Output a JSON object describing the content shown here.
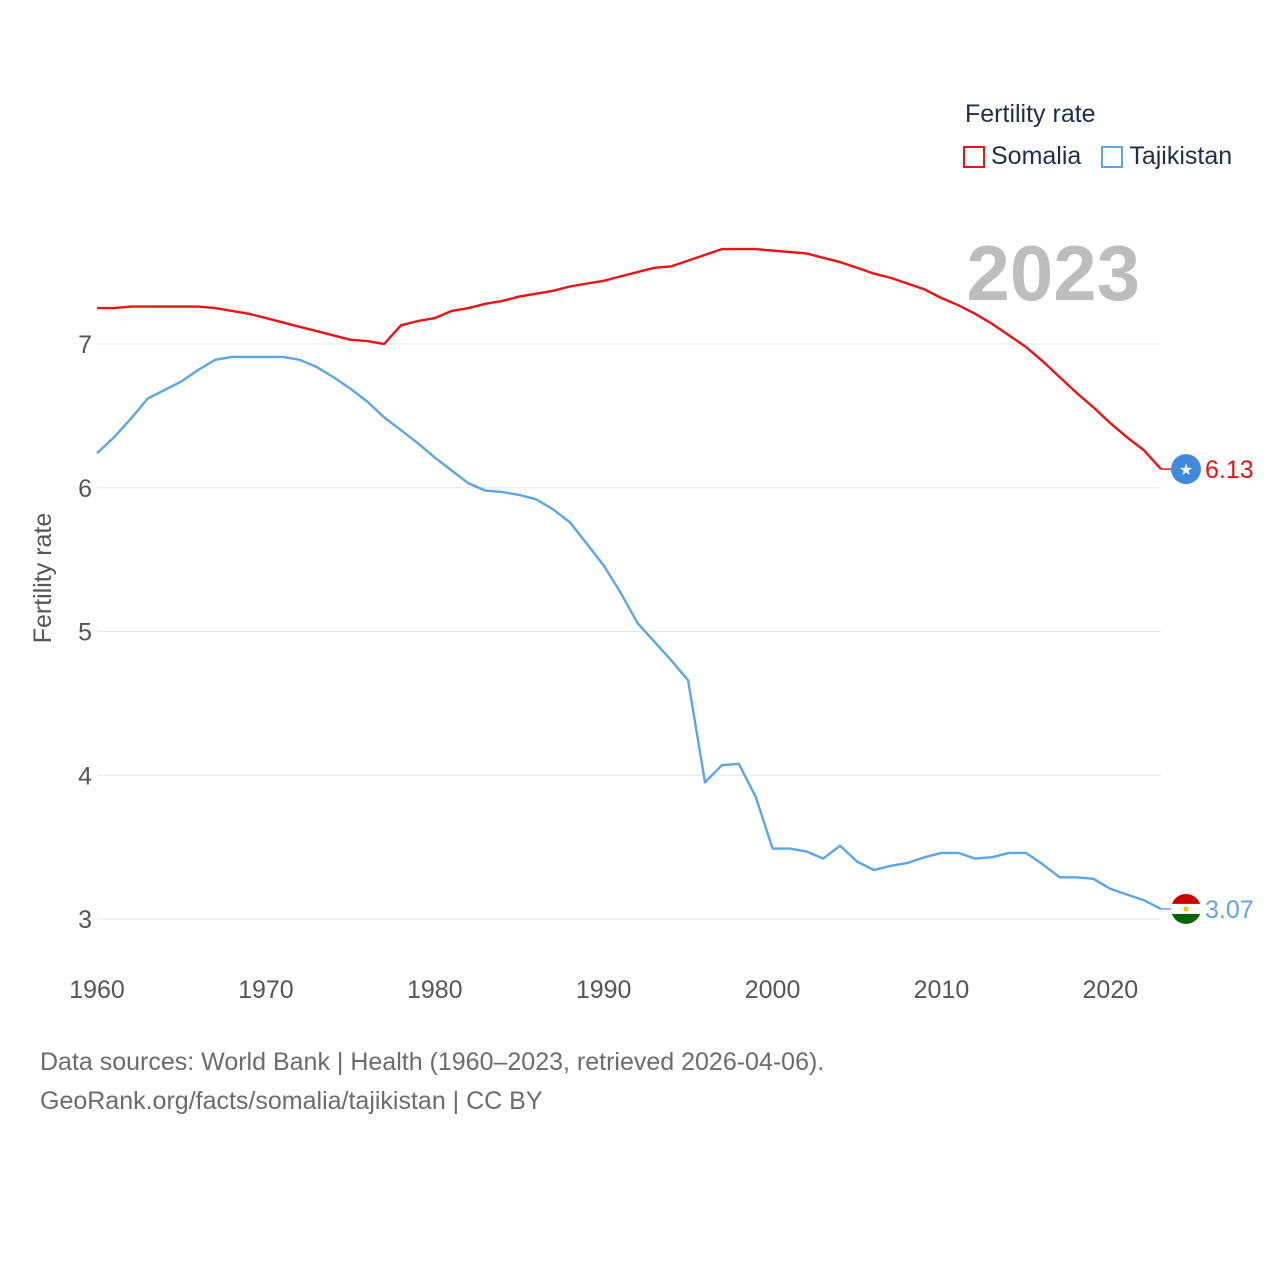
{
  "legend": {
    "title": "Fertility rate",
    "items": [
      {
        "name": "Somalia",
        "color": "#ee1111"
      },
      {
        "name": "Tajikistan",
        "color": "#5ba4e8"
      }
    ]
  },
  "footer": {
    "line1": "Data sources: World Bank | Health (1960–2023, retrieved 2026-04-06).",
    "line2": "GeoRank.org/facts/somalia/tajikistan | CC BY"
  },
  "chart_data": {
    "type": "line",
    "title": "2023",
    "xlabel": "",
    "ylabel": "Fertility rate",
    "xlim": [
      1960,
      2023
    ],
    "ylim": [
      2.9,
      8.0
    ],
    "xticks": [
      1960,
      1970,
      1980,
      1990,
      2000,
      2010,
      2020
    ],
    "yticks": [
      3,
      4,
      5,
      6,
      7
    ],
    "grid": true,
    "legend_position": "top-right",
    "x": [
      1960,
      1961,
      1962,
      1963,
      1964,
      1965,
      1966,
      1967,
      1968,
      1969,
      1970,
      1971,
      1972,
      1973,
      1974,
      1975,
      1976,
      1977,
      1978,
      1979,
      1980,
      1981,
      1982,
      1983,
      1984,
      1985,
      1986,
      1987,
      1988,
      1989,
      1990,
      1991,
      1992,
      1993,
      1994,
      1995,
      1996,
      1997,
      1998,
      1999,
      2000,
      2001,
      2002,
      2003,
      2004,
      2005,
      2006,
      2007,
      2008,
      2009,
      2010,
      2011,
      2012,
      2013,
      2014,
      2015,
      2016,
      2017,
      2018,
      2019,
      2020,
      2021,
      2022,
      2023
    ],
    "series": [
      {
        "name": "Somalia",
        "color": "#ee1111",
        "end_label": "6.13",
        "values": [
          7.25,
          7.25,
          7.26,
          7.26,
          7.26,
          7.26,
          7.26,
          7.25,
          7.23,
          7.21,
          7.18,
          7.15,
          7.12,
          7.09,
          7.06,
          7.03,
          7.02,
          7.0,
          7.13,
          7.16,
          7.18,
          7.23,
          7.25,
          7.28,
          7.3,
          7.33,
          7.35,
          7.37,
          7.4,
          7.42,
          7.44,
          7.47,
          7.5,
          7.53,
          7.54,
          7.58,
          7.62,
          7.66,
          7.66,
          7.66,
          7.65,
          7.64,
          7.63,
          7.6,
          7.57,
          7.53,
          7.49,
          7.46,
          7.42,
          7.38,
          7.32,
          7.27,
          7.21,
          7.14,
          7.06,
          6.98,
          6.88,
          6.77,
          6.66,
          6.56,
          6.45,
          6.35,
          6.26,
          6.13
        ]
      },
      {
        "name": "Tajikistan",
        "color": "#5ba4e8",
        "end_label": "3.07",
        "values": [
          6.24,
          6.35,
          6.48,
          6.62,
          6.68,
          6.74,
          6.82,
          6.89,
          6.91,
          6.91,
          6.91,
          6.91,
          6.89,
          6.84,
          6.77,
          6.69,
          6.6,
          6.49,
          6.4,
          6.31,
          6.21,
          6.12,
          6.03,
          5.98,
          5.97,
          5.95,
          5.92,
          5.85,
          5.76,
          5.61,
          5.46,
          5.27,
          5.06,
          4.93,
          4.8,
          4.66,
          3.95,
          4.07,
          4.08,
          3.85,
          3.49,
          3.49,
          3.47,
          3.42,
          3.51,
          3.4,
          3.34,
          3.37,
          3.39,
          3.43,
          3.46,
          3.46,
          3.42,
          3.43,
          3.46,
          3.46,
          3.38,
          3.29,
          3.29,
          3.28,
          3.21,
          3.17,
          3.13,
          3.07
        ]
      }
    ]
  }
}
